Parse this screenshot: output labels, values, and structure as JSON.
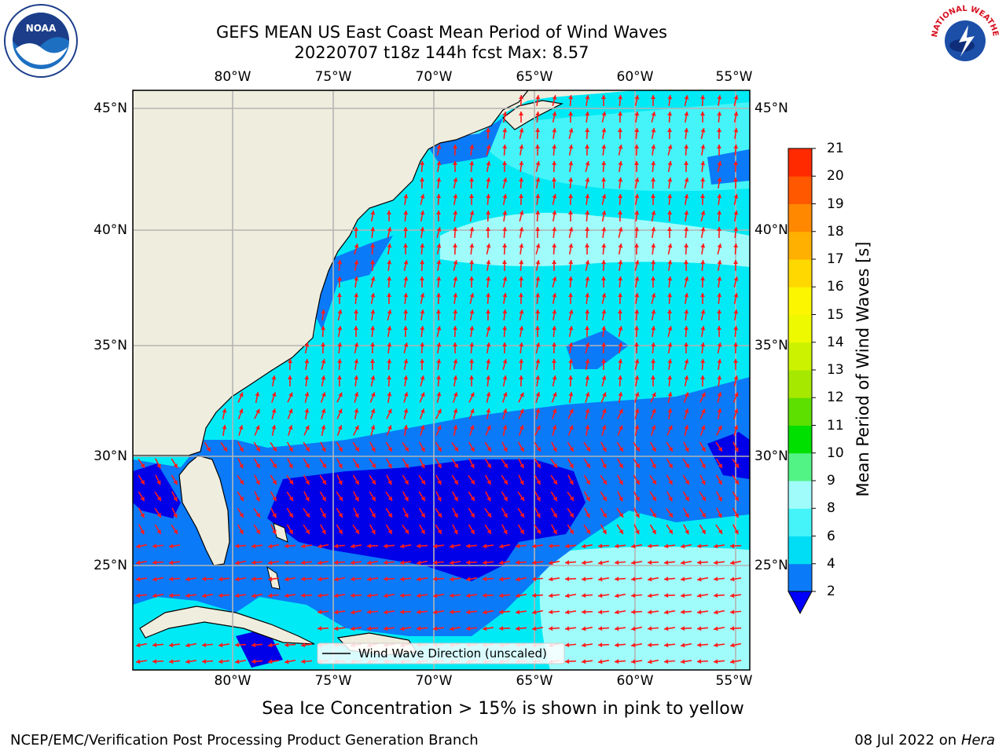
{
  "title_line1": "GEFS MEAN US East Coast Mean Period of Wind Waves",
  "title_line2": "20220707 t18z 144h fcst   Max: 8.57",
  "lon_labels": [
    "80°W",
    "75°W",
    "70°W",
    "65°W",
    "60°W",
    "55°W"
  ],
  "lat_labels_left": [
    "45°N",
    "40°N",
    "35°N",
    "30°N",
    "25°N"
  ],
  "lat_labels_right": [
    "45°N",
    "40°N",
    "35°N",
    "30°N",
    "25°N"
  ],
  "legend_label": "Wind Wave Direction (unscaled)",
  "colorbar": {
    "label": "Mean Period of Wind Waves [s]",
    "ticks": [
      "2",
      "4",
      "6",
      "8",
      "9",
      "10",
      "11",
      "12",
      "13",
      "14",
      "15",
      "16",
      "17",
      "18",
      "19",
      "20",
      "21"
    ],
    "colors": [
      "#0a7af8",
      "#00ddf5",
      "#44f4f8",
      "#a0fcfb",
      "#52f486",
      "#00e000",
      "#5ddf00",
      "#a6e800",
      "#ccf200",
      "#eef900",
      "#fcf600",
      "#ffd800",
      "#ffb000",
      "#ff8800",
      "#ff5800",
      "#ff2a00",
      "#ff0000"
    ],
    "under_color": "#0000ff"
  },
  "caption": "Sea Ice Concentration > 15% is shown in pink to yellow",
  "footer_left": "NCEP/EMC/Verification Post Processing Product Generation Branch",
  "footer_right_date": "08 Jul 2022 on",
  "footer_right_host": "Hera",
  "logos": {
    "left": "NOAA",
    "right": "NATIONAL WEATHER SERVICE"
  },
  "colors": {
    "land": "#efedde",
    "arrow": "#ff1a1a",
    "grid": "#b4b4b4"
  }
}
